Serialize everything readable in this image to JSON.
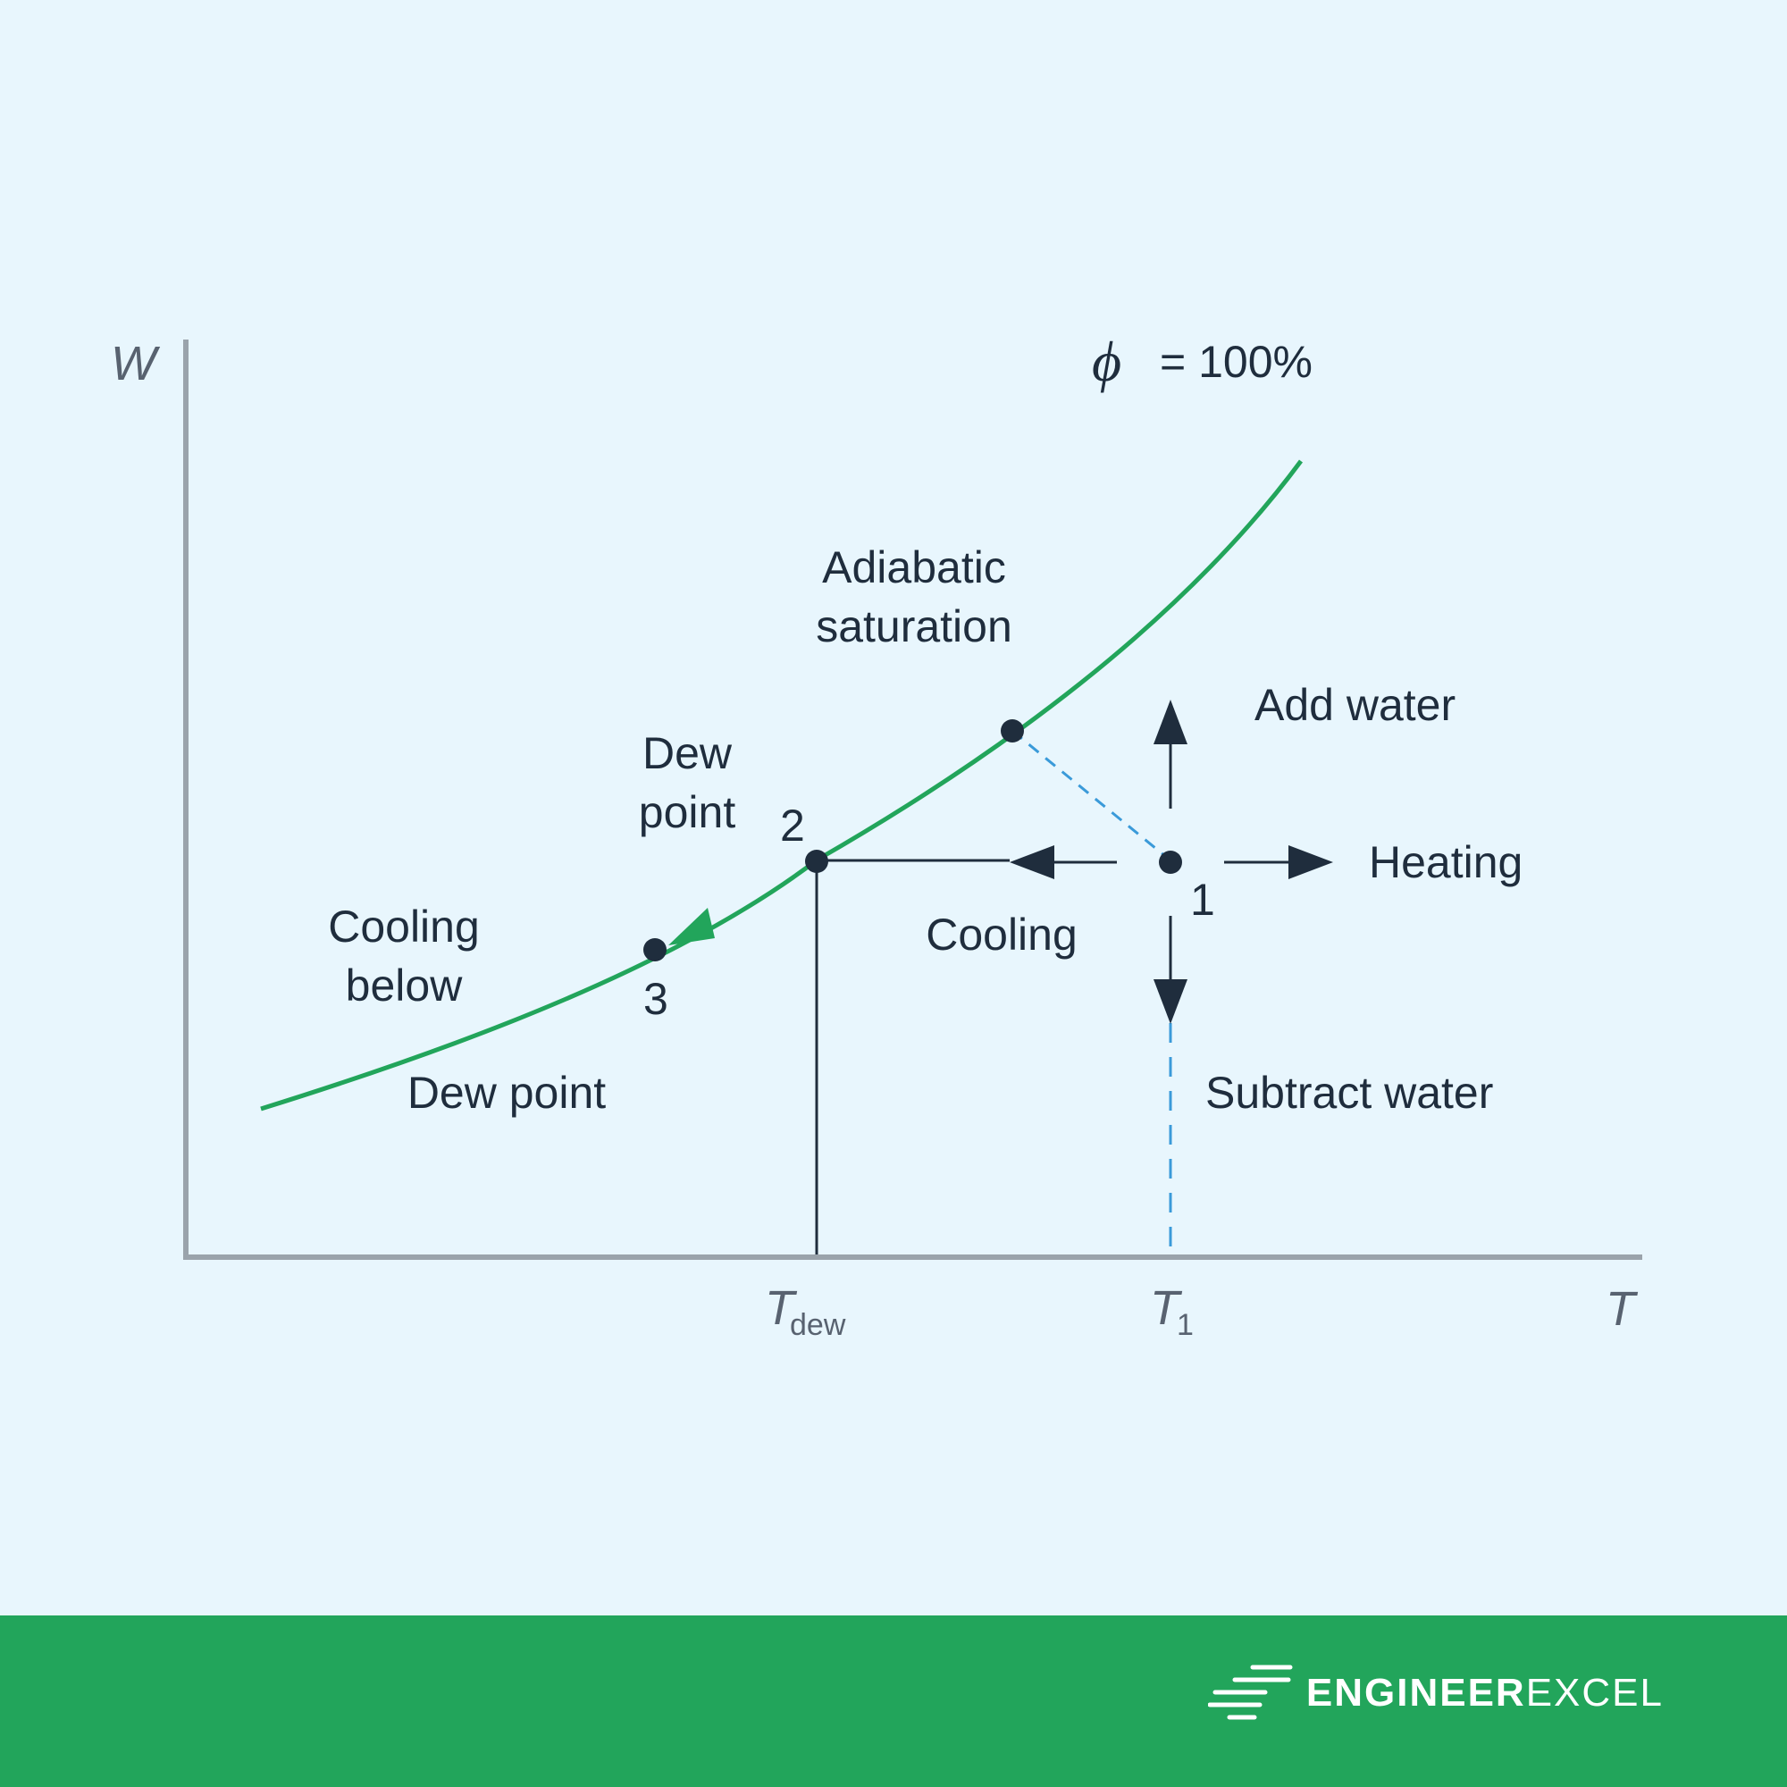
{
  "axes": {
    "y_label": "W",
    "x_label": "T",
    "tick_tdew_main": "T",
    "tick_tdew_sub": "dew",
    "tick_t1_main": "T",
    "tick_t1_sub": "1"
  },
  "curve": {
    "label_symbol": "ϕ",
    "label_value": "= 100%"
  },
  "labels": {
    "adiabatic_line1": "Adiabatic",
    "adiabatic_line2": "saturation",
    "add_water": "Add water",
    "heating": "Heating",
    "cooling": "Cooling",
    "subtract_water": "Subtract water",
    "dew_line1": "Dew",
    "dew_line2": "point",
    "cooling_below_line1": "Cooling",
    "cooling_below_line2": "below",
    "dew_point": "Dew point"
  },
  "points": {
    "p1": "1",
    "p2": "2",
    "p3": "3"
  },
  "colors": {
    "curve": "#22a55b",
    "axis": "#9aa3ab",
    "ink": "#1f2d3d",
    "dashed": "#3a9ad9",
    "background": "#e8f6fd",
    "footer": "#22a55b"
  },
  "brand": {
    "part1": "ENGINEER",
    "part2": "EXCEL"
  }
}
